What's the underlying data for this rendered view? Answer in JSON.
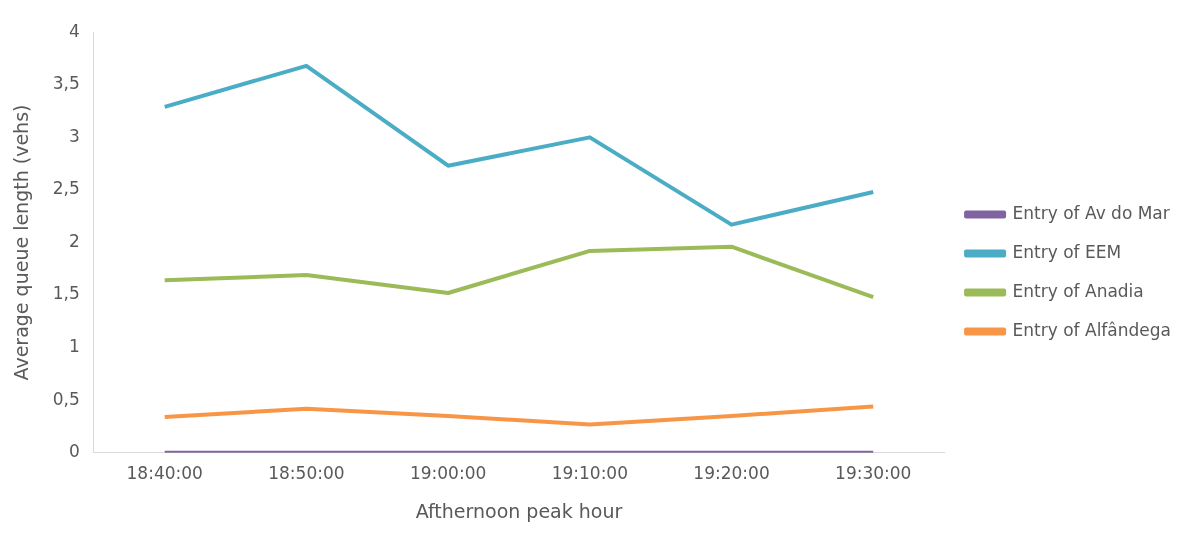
{
  "chart_data": {
    "type": "line",
    "xlabel": "Afthernoon peak hour",
    "ylabel": "Average queue length (vehs)",
    "categories": [
      "18:40:00",
      "18:50:00",
      "19:00:00",
      "19:10:00",
      "19:20:00",
      "19:30:00"
    ],
    "series": [
      {
        "name": "Entry of Av do Mar",
        "color": "#8064a2",
        "values": [
          0,
          0,
          0,
          0,
          0,
          0
        ]
      },
      {
        "name": "Entry of EEM",
        "color": "#4bacc6",
        "values": [
          3.29,
          3.68,
          2.73,
          3.0,
          2.17,
          2.48
        ]
      },
      {
        "name": "Entry of Anadia",
        "color": "#9bbb59",
        "values": [
          1.64,
          1.69,
          1.52,
          1.92,
          1.96,
          1.48
        ]
      },
      {
        "name": "Entry of Alfândega",
        "color": "#f79646",
        "values": [
          0.34,
          0.42,
          0.35,
          0.27,
          0.35,
          0.44
        ]
      }
    ],
    "ylim": [
      0,
      4
    ],
    "yticks": [
      0,
      {
        "value": 0.5,
        "label": "0,5"
      },
      1,
      {
        "value": 1.5,
        "label": "1,5"
      },
      2,
      {
        "value": 2.5,
        "label": "2,5"
      },
      3,
      {
        "value": 3.5,
        "label": "3,5"
      },
      4
    ],
    "grid": false,
    "legend": "right",
    "marker": "none",
    "line_style": "solid"
  }
}
